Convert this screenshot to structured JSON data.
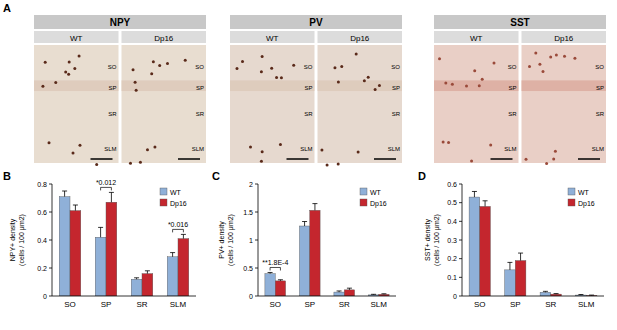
{
  "panel_a": {
    "label": "A",
    "stains": [
      {
        "name": "NPY",
        "conditions": [
          "WT",
          "Dp16"
        ]
      },
      {
        "name": "PV",
        "conditions": [
          "WT",
          "Dp16"
        ]
      },
      {
        "name": "SST",
        "conditions": [
          "WT",
          "Dp16"
        ]
      }
    ],
    "layers": [
      "SO",
      "SP",
      "SR",
      "SLM"
    ]
  },
  "chart_data": [
    {
      "type": "bar",
      "panel": "B",
      "y_label": [
        "NPY+ density",
        "(cells / 100 μm2)"
      ],
      "categories": [
        "SO",
        "SP",
        "SR",
        "SLM"
      ],
      "series": [
        {
          "name": "WT",
          "color": "#8fb0d8",
          "values": [
            0.71,
            0.42,
            0.12,
            0.28
          ],
          "error": [
            0.04,
            0.07,
            0.01,
            0.03
          ]
        },
        {
          "name": "Dp16",
          "color": "#c4262e",
          "values": [
            0.61,
            0.67,
            0.16,
            0.41
          ],
          "error": [
            0.04,
            0.07,
            0.02,
            0.03
          ]
        }
      ],
      "ylim": [
        0,
        0.8
      ],
      "yticks": [
        0,
        0.2,
        0.4,
        0.6,
        0.8
      ],
      "grid": false,
      "legend": "top-right",
      "annotations": [
        {
          "text": "*0.012",
          "category": 1
        },
        {
          "text": "*0.016",
          "category": 3
        }
      ]
    },
    {
      "type": "bar",
      "panel": "C",
      "y_label": [
        "PV+ density",
        "(cells / 100 μm2)"
      ],
      "categories": [
        "SO",
        "SP",
        "SR",
        "SLM"
      ],
      "series": [
        {
          "name": "WT",
          "color": "#8fb0d8",
          "values": [
            0.4,
            1.25,
            0.07,
            0.02
          ],
          "error": [
            0.02,
            0.08,
            0.02,
            0.01
          ]
        },
        {
          "name": "Dp16",
          "color": "#c4262e",
          "values": [
            0.27,
            1.53,
            0.11,
            0.03
          ],
          "error": [
            0.02,
            0.12,
            0.03,
            0.01
          ]
        }
      ],
      "ylim": [
        0,
        2
      ],
      "yticks": [
        0,
        0.5,
        1,
        1.5,
        2
      ],
      "grid": false,
      "legend": "top-right",
      "annotations": [
        {
          "text": "**1.8E-4",
          "category": 0
        }
      ]
    },
    {
      "type": "bar",
      "panel": "D",
      "y_label": [
        "SST+ density",
        "(cells / 100 μm2)"
      ],
      "categories": [
        "SO",
        "SP",
        "SR",
        "SLM"
      ],
      "series": [
        {
          "name": "WT",
          "color": "#8fb0d8",
          "values": [
            0.53,
            0.14,
            0.02,
            0.005
          ],
          "error": [
            0.03,
            0.04,
            0.005,
            0.003
          ]
        },
        {
          "name": "Dp16",
          "color": "#c4262e",
          "values": [
            0.48,
            0.19,
            0.01,
            0.003
          ],
          "error": [
            0.03,
            0.04,
            0.003,
            0.002
          ]
        }
      ],
      "ylim": [
        0,
        0.6
      ],
      "yticks": [
        0,
        0.1,
        0.2,
        0.3,
        0.4,
        0.5,
        0.6
      ],
      "grid": false,
      "legend": "top-right",
      "annotations": []
    }
  ]
}
